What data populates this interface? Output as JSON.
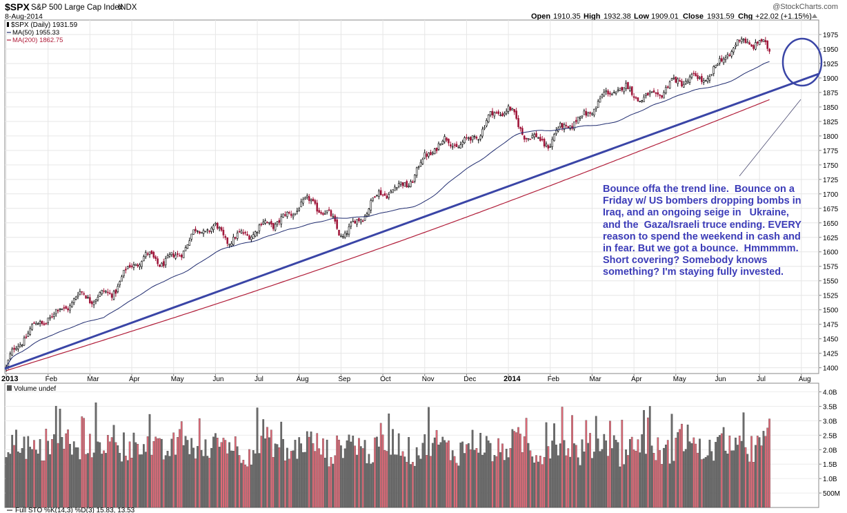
{
  "header": {
    "symbol": "$SPX",
    "name": "S&P 500 Large Cap Index",
    "exchange": "INDX",
    "date": "8-Aug-2014",
    "watermark": "@StockCharts.com",
    "ohlc": [
      {
        "label": "Open",
        "value": "1910.35"
      },
      {
        "label": "High",
        "value": "1932.38"
      },
      {
        "label": "Low",
        "value": "1909.01"
      },
      {
        "label": "Close",
        "value": "1931.59"
      },
      {
        "label": "Chg",
        "value": "+22.02 (+1.15%)"
      }
    ]
  },
  "legend": {
    "price": "$SPX (Daily) 1931.59",
    "ma50": "MA(50) 1955.33",
    "ma200": "MA(200) 1862.75"
  },
  "volume_label": "Volume undef",
  "stoch_label": "Full STO %K(14,3) %D(3) 15.83, 13.53",
  "annotation": "Bounce offa the trend line.  Bounce on a Friday w/ US bombers dropping bombs in Iraq, and an ongoing seige in   Ukraine, and the  Gaza/Israeli truce ending. EVERY reason to spend the weekend in cash and in fear. But we got a bounce.  Hmmmmm. Short covering? Somebody knows something? I'm staying fully invested.",
  "colors": {
    "up": "#000000",
    "down": "#a0163a",
    "ma50": "#1e2a6e",
    "ma200": "#b01c38",
    "trendline": "#3a45a6",
    "annotation": "#3c3cb8",
    "vol_up": "#6b6b6b",
    "vol_down": "#e06a78"
  },
  "chart_data": {
    "type": "candlestick",
    "title": "$SPX S&P 500 Large Cap Index INDX",
    "y_axis": {
      "range": [
        1390,
        2000
      ],
      "ticks": [
        1400,
        1425,
        1450,
        1475,
        1500,
        1525,
        1550,
        1575,
        1600,
        1625,
        1650,
        1675,
        1700,
        1725,
        1750,
        1775,
        1800,
        1825,
        1850,
        1875,
        1900,
        1925,
        1950,
        1975
      ]
    },
    "x_axis": {
      "tick_labels": [
        "2013",
        "Feb",
        "Mar",
        "Apr",
        "May",
        "Jun",
        "Jul",
        "Aug",
        "Sep",
        "Oct",
        "Nov",
        "Dec",
        "2014",
        "Feb",
        "Mar",
        "Apr",
        "May",
        "Jun",
        "Jul",
        "Aug"
      ]
    },
    "price_close_monthly": {
      "months": [
        "2013",
        "Feb",
        "Mar",
        "Apr",
        "May",
        "Jun",
        "Jul",
        "Aug",
        "Sep",
        "Oct",
        "Nov",
        "Dec",
        "2014",
        "Feb",
        "Mar",
        "Apr",
        "May",
        "Jun",
        "Jul",
        "Aug"
      ],
      "values": [
        1400,
        1500,
        1515,
        1570,
        1600,
        1640,
        1625,
        1690,
        1640,
        1690,
        1760,
        1800,
        1840,
        1780,
        1860,
        1875,
        1880,
        1925,
        1970,
        1925
      ]
    },
    "series": [
      {
        "name": "MA(50)",
        "last": 1955.33
      },
      {
        "name": "MA(200)",
        "last": 1862.75
      }
    ],
    "annotation_text": "Bounce offa the trend line.",
    "volume_axis": {
      "tick_labels": [
        "4.0B",
        "3.5B",
        "3.0B",
        "2.5B",
        "2.0B",
        "1.5B",
        "1.0B",
        "500M"
      ]
    },
    "ohlc_last": {
      "open": 1910.35,
      "high": 1932.38,
      "low": 1909.01,
      "close": 1931.59,
      "change": 22.02,
      "change_pct": 1.15
    }
  }
}
